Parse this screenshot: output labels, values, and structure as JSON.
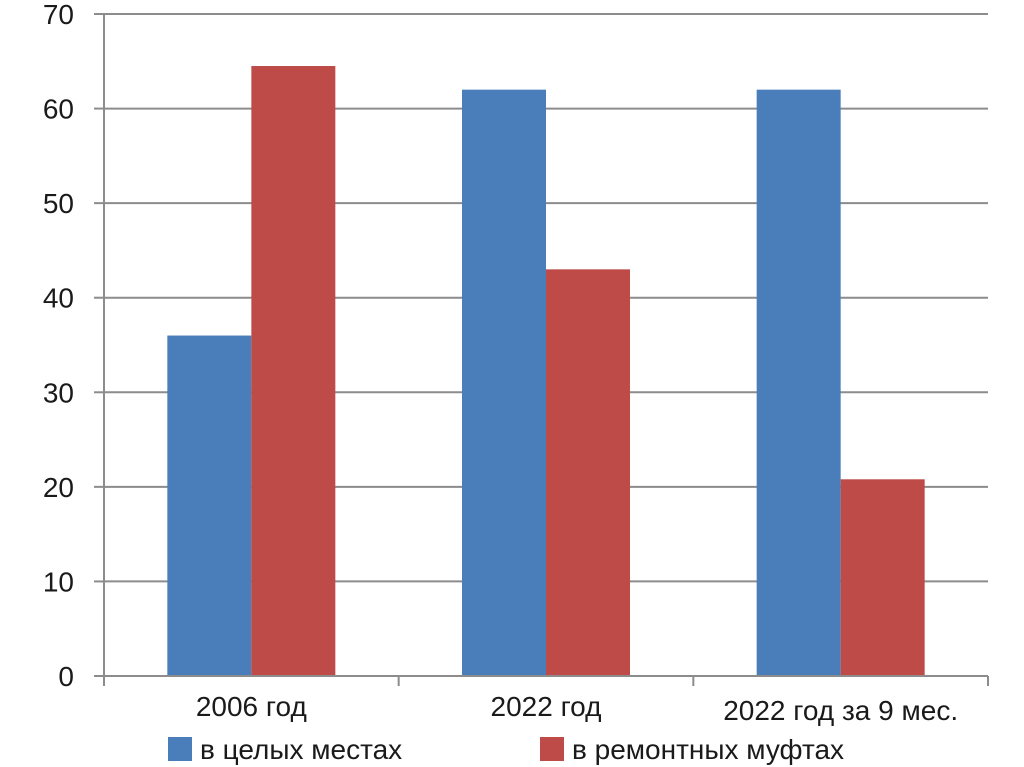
{
  "chart_data": {
    "type": "bar",
    "categories": [
      "2006 год",
      "2022 год",
      "2022 год за 9 мес."
    ],
    "series": [
      {
        "name": "в целых местах",
        "values": [
          36,
          62,
          62
        ],
        "color": "#4a7ebb"
      },
      {
        "name": "в ремонтных муфтах",
        "values": [
          64.5,
          43,
          20.8
        ],
        "color": "#be4b48"
      }
    ],
    "ylim": [
      0,
      70
    ],
    "yticks": [
      0,
      10,
      20,
      30,
      40,
      50,
      60,
      70
    ],
    "grid": true,
    "legend": "bottom"
  }
}
